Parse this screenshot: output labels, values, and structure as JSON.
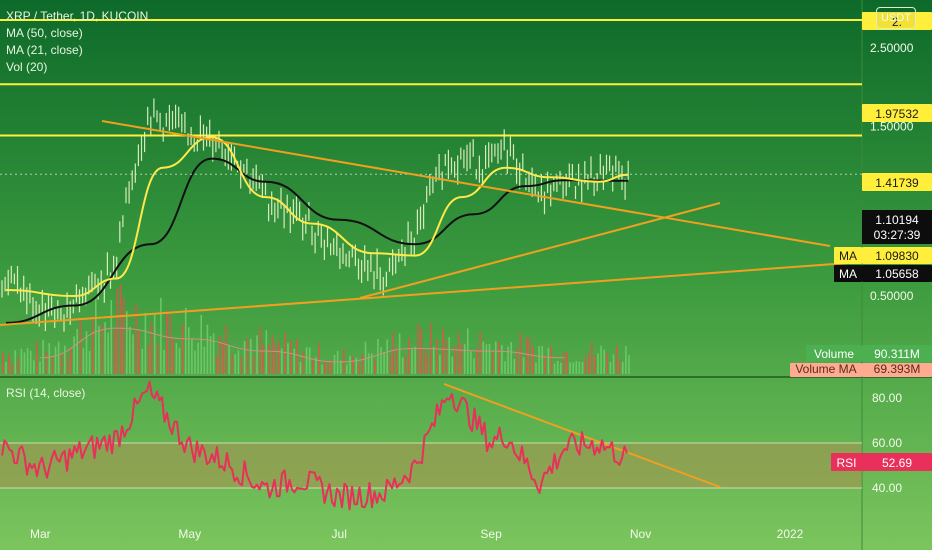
{
  "legend": {
    "symbol": "XRP / Tether, 1D, KUCOIN",
    "ma50": "MA (50, close)",
    "ma21": "MA (21, close)",
    "vol": "Vol (20)"
  },
  "currency_button": "USDT",
  "rsi_legend": "RSI (14, close)",
  "colors": {
    "background_top": "#0f6e2c",
    "background_bottom": "#74c05a",
    "price_candles": "#eaf6c8",
    "ma21_line": "#ffe94a",
    "ma50_line": "#111111",
    "horizontal_levels": "#ffef3a",
    "trendlines": "#f0a020",
    "volume_bars": "#e8504a",
    "volume_ma": "#d09080",
    "rsi_line": "#e8305a",
    "rsi_band": "#b88a50"
  },
  "chart_data": [
    {
      "type": "line",
      "panel": "price",
      "title": "XRP / Tether, 1D, KUCOIN",
      "y_scale": "log",
      "y_ticks": [
        "2.50000",
        "1.50000",
        "0.50000"
      ],
      "x_ticks": [
        "Mar",
        "May",
        "Jul",
        "Sep",
        "Nov",
        "2022"
      ],
      "horizontal_levels": [
        1.97532,
        1.41739
      ],
      "top_level_label": "2.",
      "price_labels": {
        "level_1": "1.97532",
        "level_2": "1.41739",
        "last_price": "1.10194",
        "countdown": "03:27:39",
        "ma21_tag": "MA",
        "ma21_value": "1.09830",
        "ma50_tag": "MA",
        "ma50_value": "1.05658"
      },
      "series": [
        {
          "name": "Price",
          "x": [
            "2021-02-15",
            "2021-03-01",
            "2021-03-15",
            "2021-04-01",
            "2021-04-14",
            "2021-05-01",
            "2021-05-15",
            "2021-06-01",
            "2021-06-15",
            "2021-07-01",
            "2021-07-20",
            "2021-08-01",
            "2021-08-15",
            "2021-09-01",
            "2021-09-07",
            "2021-09-21",
            "2021-10-01",
            "2021-10-15",
            "2021-10-27"
          ],
          "values": [
            0.57,
            0.45,
            0.48,
            0.6,
            1.62,
            1.45,
            1.35,
            0.95,
            0.83,
            0.68,
            0.56,
            0.74,
            1.25,
            1.18,
            1.33,
            0.95,
            1.05,
            1.12,
            1.1
          ]
        },
        {
          "name": "MA (21, close)",
          "x": [
            "2021-02-15",
            "2021-03-15",
            "2021-04-01",
            "2021-04-20",
            "2021-05-10",
            "2021-06-01",
            "2021-06-20",
            "2021-07-15",
            "2021-08-01",
            "2021-08-20",
            "2021-09-07",
            "2021-09-25",
            "2021-10-15",
            "2021-10-27"
          ],
          "values": [
            0.52,
            0.5,
            0.56,
            1.15,
            1.4,
            0.95,
            0.8,
            0.66,
            0.65,
            0.95,
            1.15,
            1.08,
            1.05,
            1.098
          ]
        },
        {
          "name": "MA (50, close)",
          "x": [
            "2021-02-15",
            "2021-03-15",
            "2021-04-15",
            "2021-05-10",
            "2021-06-01",
            "2021-07-01",
            "2021-08-01",
            "2021-08-25",
            "2021-09-15",
            "2021-10-01",
            "2021-10-27"
          ],
          "values": [
            0.42,
            0.47,
            0.7,
            1.22,
            1.05,
            0.82,
            0.7,
            0.85,
            1.02,
            1.06,
            1.057
          ]
        }
      ]
    },
    {
      "type": "bar",
      "panel": "volume",
      "labels": {
        "volume_tag": "Volume",
        "volume_value": "90.311M",
        "volume_ma_tag": "Volume MA",
        "volume_ma_value": "69.393M"
      },
      "x": [
        "2021-03",
        "2021-04",
        "2021-05",
        "2021-06",
        "2021-07",
        "2021-08",
        "2021-09",
        "2021-10"
      ],
      "values": [
        60,
        170,
        130,
        85,
        45,
        95,
        85,
        60
      ],
      "unit": "M"
    },
    {
      "type": "line",
      "panel": "rsi",
      "title": "RSI (14, close)",
      "y_ticks": [
        "80.00",
        "60.00",
        "40.00"
      ],
      "band": [
        40,
        60
      ],
      "last_tag": "RSI",
      "last_value": "52.69",
      "x": [
        "2021-02-15",
        "2021-03-01",
        "2021-03-15",
        "2021-04-01",
        "2021-04-14",
        "2021-05-01",
        "2021-05-15",
        "2021-06-01",
        "2021-06-15",
        "2021-07-01",
        "2021-07-20",
        "2021-08-01",
        "2021-08-15",
        "2021-09-01",
        "2021-09-07",
        "2021-09-21",
        "2021-10-01",
        "2021-10-15",
        "2021-10-27"
      ],
      "values": [
        58,
        48,
        55,
        62,
        83,
        58,
        52,
        40,
        44,
        36,
        38,
        50,
        84,
        60,
        64,
        42,
        58,
        60,
        52.69
      ]
    }
  ]
}
